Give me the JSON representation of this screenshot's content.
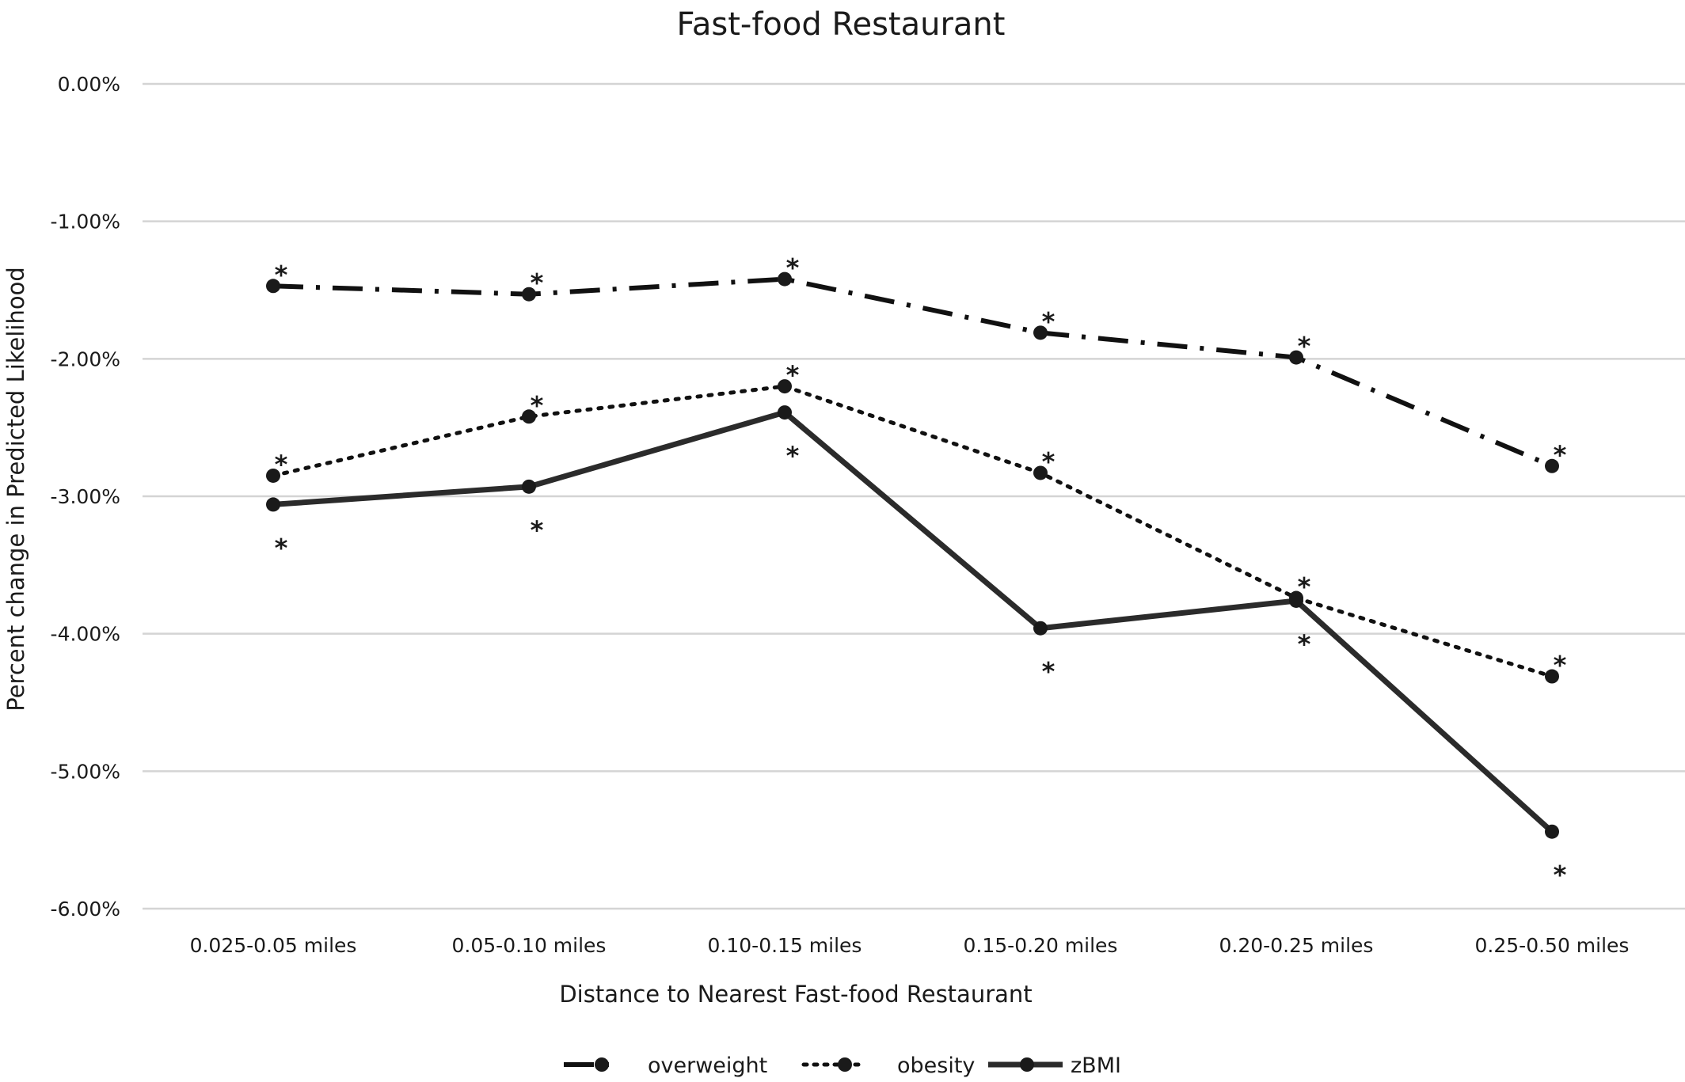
{
  "chart_data": {
    "type": "line",
    "title": "Fast-food Restaurant",
    "xlabel": "Distance to Nearest Fast-food Restaurant",
    "ylabel": "Percent change in Predicted Likelihood",
    "categories": [
      "0.025-0.05 miles",
      "0.05-0.10 miles",
      "0.10-0.15 miles",
      "0.15-0.20 miles",
      "0.20-0.25 miles",
      "0.25-0.50 miles"
    ],
    "ylim": [
      -6.0,
      0.0
    ],
    "y_ticks": [
      0,
      -1,
      -2,
      -3,
      -4,
      -5,
      -6
    ],
    "y_tick_labels": [
      "0.00%",
      "-1.00%",
      "-2.00%",
      "-3.00%",
      "-4.00%",
      "-5.00%",
      "-6.00%"
    ],
    "grid": "horizontal",
    "legend_position": "bottom",
    "significance_marker": "*",
    "series": [
      {
        "name": "overweight",
        "style": "dash-dot",
        "color": "#111111",
        "values": [
          -1.47,
          -1.53,
          -1.42,
          -1.81,
          -1.99,
          -2.78
        ],
        "significant": [
          true,
          true,
          true,
          true,
          true,
          true
        ],
        "star_position": [
          "above",
          "above",
          "above",
          "above",
          "above",
          "above"
        ]
      },
      {
        "name": "obesity",
        "style": "dotted",
        "color": "#111111",
        "values": [
          -2.85,
          -2.42,
          -2.2,
          -2.83,
          -3.74,
          -4.31
        ],
        "significant": [
          true,
          true,
          true,
          true,
          true,
          true
        ],
        "star_position": [
          "above",
          "above",
          "above",
          "above",
          "above",
          "above"
        ]
      },
      {
        "name": "zBMI",
        "style": "solid",
        "color": "#2b2b2b",
        "values": [
          -3.06,
          -2.93,
          -2.39,
          -3.96,
          -3.76,
          -5.44
        ],
        "significant": [
          true,
          true,
          true,
          true,
          true,
          true
        ],
        "star_position": [
          "below",
          "below",
          "below",
          "below",
          "below",
          "below"
        ]
      }
    ]
  }
}
